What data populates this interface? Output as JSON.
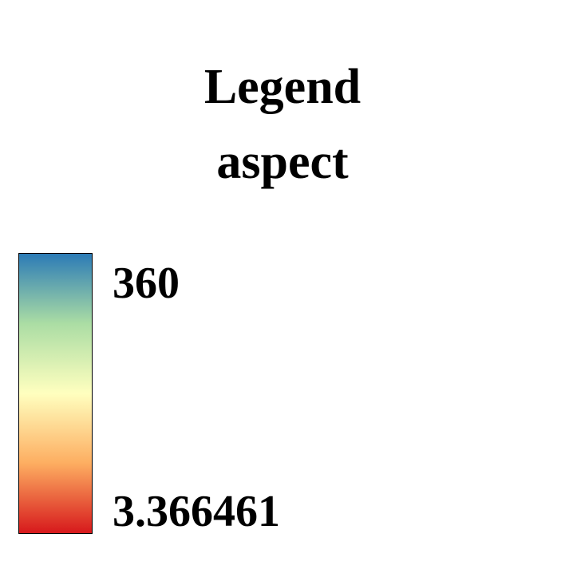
{
  "legend": {
    "title": "Legend",
    "subtitle": "aspect",
    "max_label": "360",
    "min_label": "3.366461",
    "colors": [
      "#2c7bb6",
      "#abdda4",
      "#ffffbf",
      "#fdae61",
      "#d7191c"
    ]
  }
}
